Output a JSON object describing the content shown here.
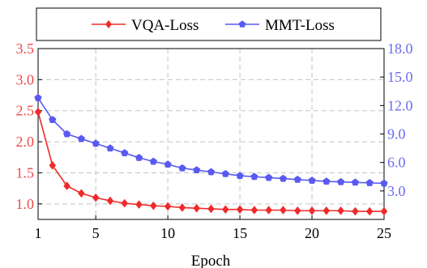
{
  "chart_data": {
    "type": "line",
    "xlabel": "Epoch",
    "x": [
      1,
      2,
      3,
      4,
      5,
      6,
      7,
      8,
      9,
      10,
      11,
      12,
      13,
      14,
      15,
      16,
      17,
      18,
      19,
      20,
      21,
      22,
      23,
      24,
      25
    ],
    "xlim": [
      1,
      25
    ],
    "xticks": [
      1,
      5,
      10,
      15,
      20,
      25
    ],
    "grid": true,
    "legend_position": "top",
    "y_left": {
      "lim": [
        0.75,
        3.5
      ],
      "ticks": [
        "1.0",
        "1.5",
        "2.0",
        "2.5",
        "3.0",
        "3.5"
      ],
      "color": "#ef4a4a"
    },
    "y_right": {
      "lim": [
        0.0,
        18.0
      ],
      "ticks": [
        "3.0",
        "6.0",
        "9.0",
        "12.0",
        "15.0",
        "18.0"
      ],
      "color": "#6b6bf0"
    },
    "series": [
      {
        "name": "VQA-Loss",
        "axis": "left",
        "color": "#f02a2a",
        "marker": "diamond",
        "values": [
          2.48,
          1.62,
          1.29,
          1.17,
          1.1,
          1.05,
          1.01,
          0.99,
          0.97,
          0.96,
          0.94,
          0.93,
          0.92,
          0.91,
          0.91,
          0.9,
          0.9,
          0.9,
          0.89,
          0.89,
          0.89,
          0.89,
          0.88,
          0.88,
          0.88
        ]
      },
      {
        "name": "MMT-Loss",
        "axis": "right",
        "color": "#5a5af0",
        "marker": "pentagon",
        "values": [
          12.8,
          10.5,
          9.0,
          8.5,
          8.0,
          7.5,
          7.0,
          6.5,
          6.1,
          5.8,
          5.4,
          5.2,
          5.0,
          4.8,
          4.6,
          4.5,
          4.4,
          4.3,
          4.2,
          4.1,
          4.0,
          3.95,
          3.9,
          3.85,
          3.8
        ]
      }
    ]
  }
}
